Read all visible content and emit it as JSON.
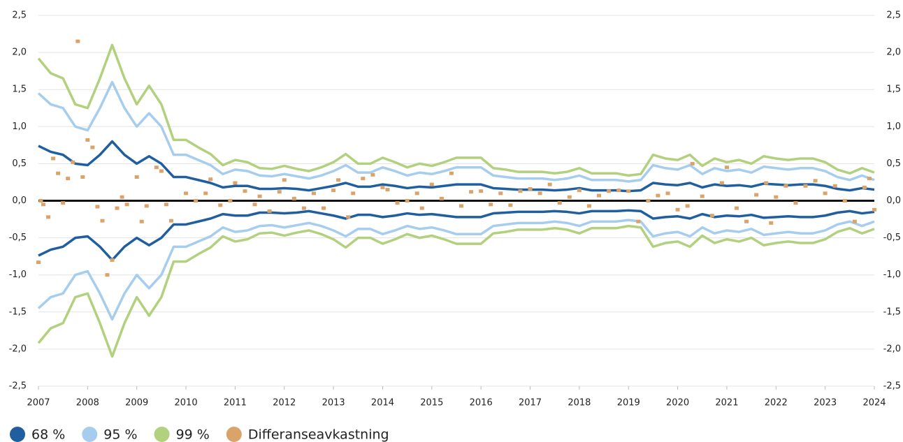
{
  "chart_data": {
    "type": "line",
    "x": [
      2007.0,
      2007.25,
      2007.5,
      2007.75,
      2008.0,
      2008.25,
      2008.5,
      2008.75,
      2009.0,
      2009.25,
      2009.5,
      2009.75,
      2010.0,
      2010.25,
      2010.5,
      2010.75,
      2011.0,
      2011.25,
      2011.5,
      2011.75,
      2012.0,
      2012.25,
      2012.5,
      2012.75,
      2013.0,
      2013.25,
      2013.5,
      2013.75,
      2014.0,
      2014.25,
      2014.5,
      2014.75,
      2015.0,
      2015.25,
      2015.5,
      2015.75,
      2016.0,
      2016.25,
      2016.5,
      2016.75,
      2017.0,
      2017.25,
      2017.5,
      2017.75,
      2018.0,
      2018.25,
      2018.5,
      2018.75,
      2019.0,
      2019.25,
      2019.5,
      2019.75,
      2020.0,
      2020.25,
      2020.5,
      2020.75,
      2021.0,
      2021.25,
      2021.5,
      2021.75,
      2022.0,
      2022.25,
      2022.5,
      2022.75,
      2023.0,
      2023.25,
      2023.5,
      2023.75,
      2024.0
    ],
    "series": [
      {
        "name": "68 %",
        "color": "#1f5f9f",
        "values": [
          0.74,
          0.66,
          0.62,
          0.5,
          0.48,
          0.62,
          0.8,
          0.62,
          0.5,
          0.6,
          0.5,
          0.32,
          0.32,
          0.28,
          0.24,
          0.18,
          0.2,
          0.2,
          0.16,
          0.16,
          0.17,
          0.16,
          0.14,
          0.17,
          0.2,
          0.24,
          0.19,
          0.19,
          0.22,
          0.2,
          0.17,
          0.19,
          0.18,
          0.2,
          0.22,
          0.22,
          0.22,
          0.17,
          0.16,
          0.15,
          0.15,
          0.15,
          0.14,
          0.15,
          0.17,
          0.14,
          0.14,
          0.14,
          0.13,
          0.14,
          0.24,
          0.22,
          0.21,
          0.24,
          0.18,
          0.22,
          0.2,
          0.21,
          0.19,
          0.23,
          0.22,
          0.21,
          0.22,
          0.22,
          0.2,
          0.16,
          0.14,
          0.17,
          0.15
        ],
        "lower_values": [
          -0.74,
          -0.66,
          -0.62,
          -0.5,
          -0.48,
          -0.62,
          -0.8,
          -0.62,
          -0.5,
          -0.6,
          -0.5,
          -0.32,
          -0.32,
          -0.28,
          -0.24,
          -0.18,
          -0.2,
          -0.2,
          -0.16,
          -0.16,
          -0.17,
          -0.16,
          -0.14,
          -0.17,
          -0.2,
          -0.24,
          -0.19,
          -0.19,
          -0.22,
          -0.2,
          -0.17,
          -0.19,
          -0.18,
          -0.2,
          -0.22,
          -0.22,
          -0.22,
          -0.17,
          -0.16,
          -0.15,
          -0.15,
          -0.15,
          -0.14,
          -0.15,
          -0.17,
          -0.14,
          -0.14,
          -0.14,
          -0.13,
          -0.14,
          -0.24,
          -0.22,
          -0.21,
          -0.24,
          -0.18,
          -0.22,
          -0.2,
          -0.21,
          -0.19,
          -0.23,
          -0.22,
          -0.21,
          -0.22,
          -0.22,
          -0.2,
          -0.16,
          -0.14,
          -0.17,
          -0.15
        ]
      },
      {
        "name": "95 %",
        "color": "#a6cdee",
        "values": [
          1.45,
          1.3,
          1.25,
          1.0,
          0.95,
          1.25,
          1.6,
          1.25,
          1.0,
          1.18,
          1.0,
          0.62,
          0.62,
          0.55,
          0.48,
          0.36,
          0.42,
          0.4,
          0.34,
          0.33,
          0.36,
          0.33,
          0.3,
          0.34,
          0.4,
          0.48,
          0.38,
          0.38,
          0.45,
          0.4,
          0.34,
          0.38,
          0.36,
          0.4,
          0.45,
          0.45,
          0.45,
          0.34,
          0.32,
          0.3,
          0.3,
          0.3,
          0.28,
          0.3,
          0.34,
          0.28,
          0.28,
          0.28,
          0.26,
          0.28,
          0.48,
          0.44,
          0.42,
          0.48,
          0.36,
          0.44,
          0.4,
          0.42,
          0.38,
          0.46,
          0.44,
          0.42,
          0.44,
          0.44,
          0.4,
          0.32,
          0.28,
          0.34,
          0.28
        ],
        "lower_values": [
          -1.45,
          -1.3,
          -1.25,
          -1.0,
          -0.95,
          -1.25,
          -1.6,
          -1.25,
          -1.0,
          -1.18,
          -1.0,
          -0.62,
          -0.62,
          -0.55,
          -0.48,
          -0.36,
          -0.42,
          -0.4,
          -0.34,
          -0.33,
          -0.36,
          -0.33,
          -0.3,
          -0.34,
          -0.4,
          -0.48,
          -0.38,
          -0.38,
          -0.45,
          -0.4,
          -0.34,
          -0.38,
          -0.36,
          -0.4,
          -0.45,
          -0.45,
          -0.45,
          -0.34,
          -0.32,
          -0.3,
          -0.3,
          -0.3,
          -0.28,
          -0.3,
          -0.34,
          -0.28,
          -0.28,
          -0.28,
          -0.26,
          -0.28,
          -0.48,
          -0.44,
          -0.42,
          -0.48,
          -0.36,
          -0.44,
          -0.4,
          -0.42,
          -0.38,
          -0.46,
          -0.44,
          -0.42,
          -0.44,
          -0.44,
          -0.4,
          -0.32,
          -0.28,
          -0.34,
          -0.28
        ]
      },
      {
        "name": "99 %",
        "color": "#b2d17e",
        "values": [
          1.92,
          1.72,
          1.65,
          1.3,
          1.25,
          1.65,
          2.1,
          1.65,
          1.3,
          1.55,
          1.3,
          0.82,
          0.82,
          0.72,
          0.63,
          0.48,
          0.55,
          0.52,
          0.44,
          0.43,
          0.47,
          0.43,
          0.4,
          0.45,
          0.52,
          0.63,
          0.5,
          0.5,
          0.58,
          0.52,
          0.45,
          0.5,
          0.47,
          0.52,
          0.58,
          0.58,
          0.58,
          0.44,
          0.42,
          0.39,
          0.39,
          0.39,
          0.37,
          0.39,
          0.44,
          0.37,
          0.37,
          0.37,
          0.34,
          0.36,
          0.62,
          0.57,
          0.55,
          0.62,
          0.47,
          0.57,
          0.52,
          0.55,
          0.5,
          0.6,
          0.57,
          0.55,
          0.57,
          0.57,
          0.52,
          0.42,
          0.37,
          0.44,
          0.38
        ],
        "lower_values": [
          -1.92,
          -1.72,
          -1.65,
          -1.3,
          -1.25,
          -1.65,
          -2.1,
          -1.65,
          -1.3,
          -1.55,
          -1.3,
          -0.82,
          -0.82,
          -0.72,
          -0.63,
          -0.48,
          -0.55,
          -0.52,
          -0.44,
          -0.43,
          -0.47,
          -0.43,
          -0.4,
          -0.45,
          -0.52,
          -0.63,
          -0.5,
          -0.5,
          -0.58,
          -0.52,
          -0.45,
          -0.5,
          -0.47,
          -0.52,
          -0.58,
          -0.58,
          -0.58,
          -0.44,
          -0.42,
          -0.39,
          -0.39,
          -0.39,
          -0.37,
          -0.39,
          -0.44,
          -0.37,
          -0.37,
          -0.37,
          -0.34,
          -0.36,
          -0.62,
          -0.57,
          -0.55,
          -0.62,
          -0.47,
          -0.57,
          -0.52,
          -0.55,
          -0.5,
          -0.6,
          -0.57,
          -0.55,
          -0.57,
          -0.57,
          -0.52,
          -0.42,
          -0.37,
          -0.44,
          -0.38
        ]
      },
      {
        "name": "Differanseavkastning",
        "color": "#d9a36a",
        "type": "scatter",
        "x": [
          2007.0,
          2007.05,
          2007.1,
          2007.2,
          2007.3,
          2007.4,
          2007.5,
          2007.6,
          2007.7,
          2007.8,
          2007.9,
          2008.0,
          2008.1,
          2008.2,
          2008.3,
          2008.4,
          2008.5,
          2008.6,
          2008.7,
          2008.8,
          2009.0,
          2009.1,
          2009.2,
          2009.4,
          2009.5,
          2009.6,
          2009.7,
          2010.0,
          2010.2,
          2010.4,
          2010.5,
          2010.7,
          2010.9,
          2011.0,
          2011.2,
          2011.4,
          2011.5,
          2011.7,
          2011.9,
          2012.0,
          2012.2,
          2012.4,
          2012.6,
          2012.8,
          2013.0,
          2013.1,
          2013.3,
          2013.4,
          2013.6,
          2013.8,
          2014.0,
          2014.1,
          2014.3,
          2014.5,
          2014.7,
          2014.8,
          2015.0,
          2015.2,
          2015.4,
          2015.6,
          2015.8,
          2016.0,
          2016.2,
          2016.4,
          2016.6,
          2016.8,
          2017.0,
          2017.2,
          2017.4,
          2017.6,
          2017.8,
          2018.0,
          2018.2,
          2018.4,
          2018.6,
          2018.8,
          2019.0,
          2019.2,
          2019.4,
          2019.6,
          2019.8,
          2020.0,
          2020.2,
          2020.3,
          2020.5,
          2020.7,
          2020.9,
          2021.0,
          2021.2,
          2021.4,
          2021.6,
          2021.8,
          2021.9,
          2022.0,
          2022.2,
          2022.4,
          2022.6,
          2022.8,
          2023.0,
          2023.2,
          2023.4,
          2023.6,
          2023.8,
          2023.9,
          2024.0
        ],
        "values": [
          -0.83,
          0.0,
          -0.05,
          -0.22,
          0.57,
          0.37,
          -0.03,
          0.3,
          0.52,
          2.15,
          0.32,
          0.82,
          0.72,
          -0.08,
          -0.27,
          -1.0,
          -0.8,
          -0.1,
          0.05,
          -0.05,
          0.32,
          -0.28,
          -0.07,
          0.45,
          0.4,
          -0.05,
          -0.27,
          0.1,
          0.0,
          0.1,
          0.29,
          -0.06,
          0.0,
          0.24,
          0.13,
          -0.05,
          0.06,
          -0.14,
          0.12,
          0.28,
          0.03,
          -0.1,
          0.1,
          -0.1,
          0.14,
          0.28,
          -0.22,
          0.1,
          0.3,
          0.35,
          0.18,
          0.15,
          -0.03,
          0.0,
          0.1,
          -0.1,
          0.22,
          0.03,
          0.37,
          -0.07,
          0.12,
          0.13,
          -0.05,
          0.1,
          -0.06,
          0.13,
          0.16,
          0.1,
          0.22,
          -0.03,
          0.05,
          0.14,
          -0.07,
          0.07,
          0.13,
          0.14,
          0.13,
          -0.28,
          0.0,
          0.07,
          0.1,
          -0.12,
          -0.07,
          0.5,
          0.06,
          -0.2,
          0.24,
          0.45,
          -0.1,
          -0.28,
          0.08,
          0.24,
          -0.3,
          0.05,
          0.2,
          -0.03,
          0.2,
          0.27,
          0.1,
          0.2,
          0.0,
          -0.28,
          0.18,
          0.3,
          -0.12
        ]
      }
    ],
    "xlim": [
      2007,
      2024
    ],
    "xticks": [
      2007,
      2008,
      2009,
      2010,
      2011,
      2012,
      2013,
      2014,
      2015,
      2016,
      2017,
      2018,
      2019,
      2020,
      2021,
      2022,
      2023,
      2024
    ],
    "ylim": [
      -2.5,
      2.5
    ],
    "yticks": [
      {
        "value": -2.5,
        "label": "-2,5"
      },
      {
        "value": -2.0,
        "label": "-2,0"
      },
      {
        "value": -1.5,
        "label": "-1,5"
      },
      {
        "value": -1.0,
        "label": "-1,0"
      },
      {
        "value": -0.5,
        "label": "-0,5"
      },
      {
        "value": 0,
        "label": "0,0"
      },
      {
        "value": 0.5,
        "label": "0,5"
      },
      {
        "value": 1.0,
        "label": "1,0"
      },
      {
        "value": 1.5,
        "label": "1,5"
      },
      {
        "value": 2.0,
        "label": "2,0"
      },
      {
        "value": 2.5,
        "label": "2,5"
      }
    ],
    "y2lim": [
      -2.5,
      2.5
    ],
    "y2ticks": [
      {
        "value": -2.5,
        "label": "-2,5"
      },
      {
        "value": -2.0,
        "label": "-2,0"
      },
      {
        "value": -1.5,
        "label": "-1,5"
      },
      {
        "value": -1.0,
        "label": "-1,0"
      },
      {
        "value": -0.5,
        "label": "-0,5"
      },
      {
        "value": 0,
        "label": "0,0"
      },
      {
        "value": 0.5,
        "label": "0,5"
      },
      {
        "value": 1.0,
        "label": "1,0"
      },
      {
        "value": 1.5,
        "label": "1,5"
      },
      {
        "value": 2.0,
        "label": "2,0"
      },
      {
        "value": 2.5,
        "label": "2,5"
      }
    ],
    "grid": true,
    "legend": "bottom-left"
  }
}
